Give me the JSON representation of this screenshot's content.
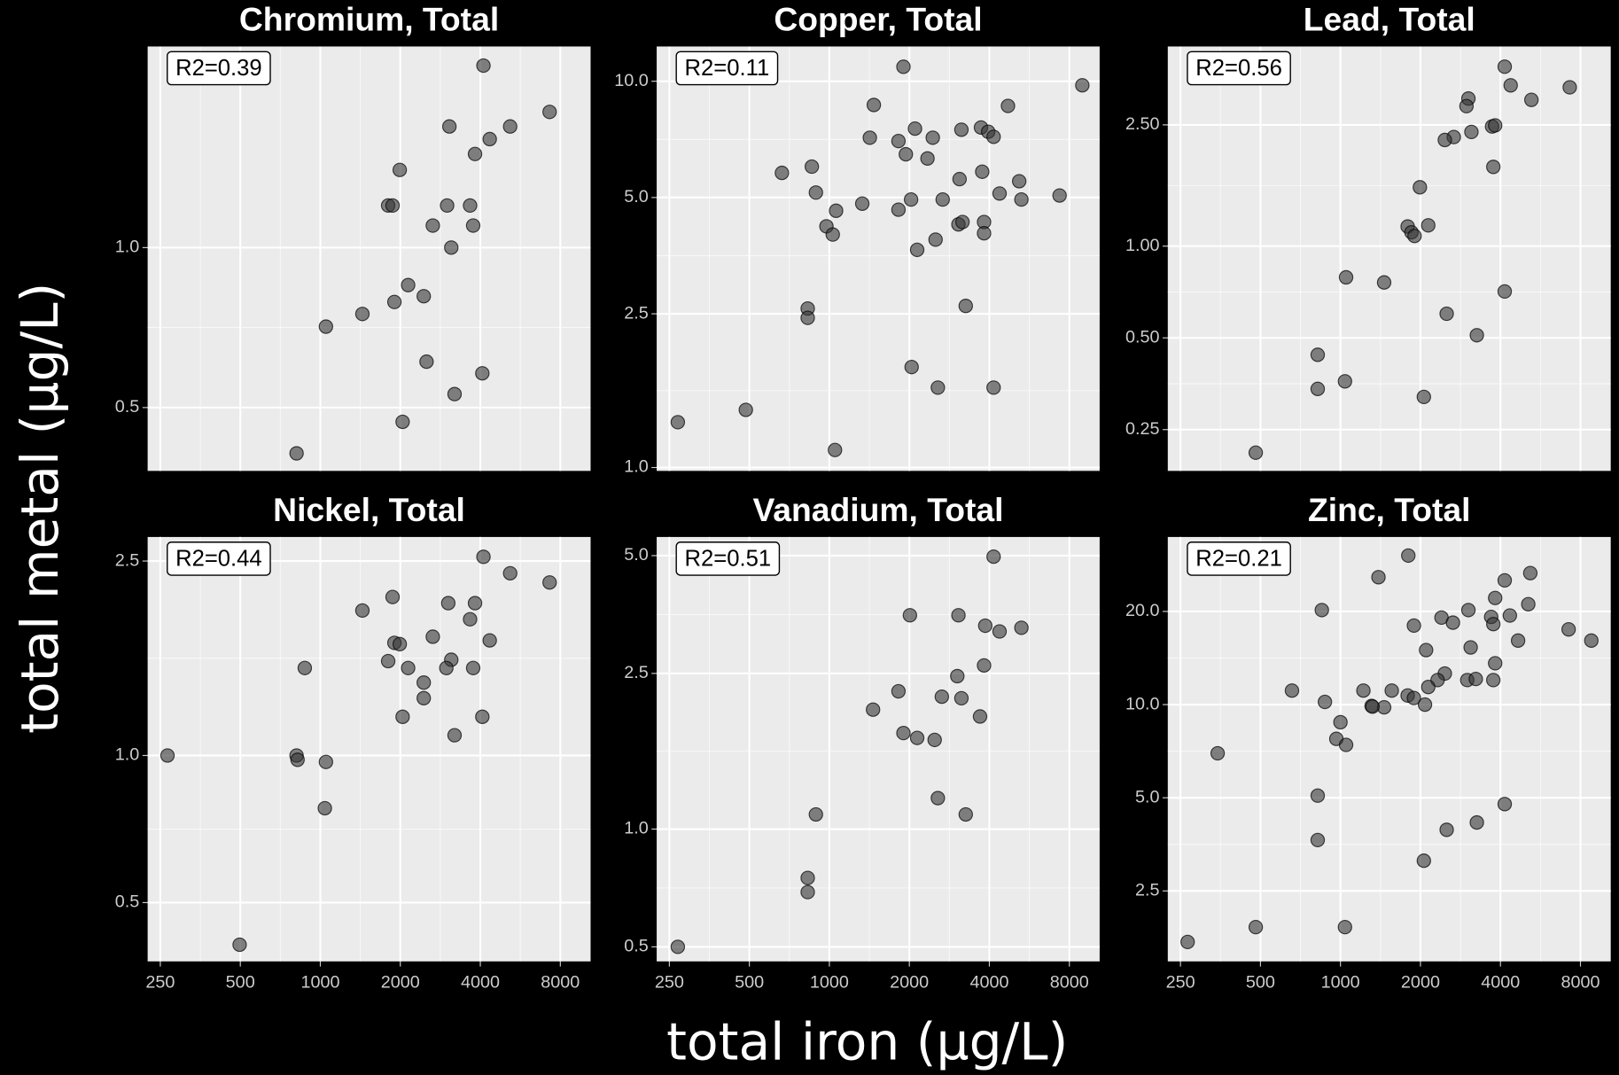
{
  "ylabel": "total metal (µg/L)",
  "xlabel": "total iron (µg/L)",
  "chart_data": [
    {
      "type": "scatter",
      "title": "Chromium, Total",
      "annotation": "R2=0.39",
      "color": "#333333",
      "log_x": true,
      "log_y": true,
      "grid": true,
      "xlim": [
        224,
        10400
      ],
      "xticks": [
        250,
        500,
        1000,
        2000,
        4000,
        8000
      ],
      "ylim": [
        0.38,
        2.39
      ],
      "yticks": [
        {
          "value": 0.5,
          "label": "0.5"
        },
        {
          "value": 1,
          "label": "1.0"
        }
      ],
      "x": [
        4110,
        7290,
        3060,
        5180,
        4340,
        3820,
        1990,
        1800,
        1870,
        3000,
        3660,
        2650,
        3760,
        3110,
        2140,
        2450,
        1900,
        1440,
        1050,
        2510,
        4070,
        3200,
        2040,
        814
      ],
      "values": [
        2.2,
        1.8,
        1.69,
        1.69,
        1.6,
        1.5,
        1.4,
        1.2,
        1.2,
        1.2,
        1.2,
        1.1,
        1.1,
        1.0,
        0.85,
        0.81,
        0.79,
        0.75,
        0.71,
        0.61,
        0.58,
        0.53,
        0.47,
        0.41
      ]
    },
    {
      "type": "scatter",
      "title": "Copper, Total",
      "annotation": "R2=0.11",
      "color": "#333333",
      "log_x": true,
      "log_y": true,
      "grid": true,
      "xlim": [
        224,
        10400
      ],
      "xticks": [
        250,
        500,
        1000,
        2000,
        4000,
        8000
      ],
      "ylim": [
        0.98,
        12.3
      ],
      "yticks": [
        {
          "value": 1,
          "label": "1.0"
        },
        2.5,
        {
          "value": 5,
          "label": "5.0"
        },
        {
          "value": 10,
          "label": "10.0"
        }
      ],
      "x": [
        269,
        485,
        663,
        859,
        890,
        1470,
        1900,
        8950,
        4700,
        1420,
        1820,
        2100,
        1940,
        2340,
        2450,
        3140,
        3720,
        3960,
        4150,
        3090,
        3760,
        5180,
        4370,
        7350,
        5280,
        2670,
        2030,
        1820,
        1330,
        1060,
        975,
        1030,
        3060,
        3170,
        3820,
        3820,
        2140,
        2510,
        3260,
        829,
        829,
        2040,
        2560,
        4150,
        1050
      ],
      "values": [
        1.31,
        1.41,
        5.79,
        6.01,
        5.15,
        8.68,
        10.9,
        9.76,
        8.63,
        7.14,
        7.0,
        7.54,
        6.47,
        6.31,
        7.14,
        7.49,
        7.59,
        7.4,
        7.18,
        5.58,
        5.83,
        5.51,
        5.12,
        5.06,
        4.94,
        4.94,
        4.94,
        4.65,
        4.82,
        4.62,
        4.21,
        4.01,
        4.26,
        4.32,
        4.32,
        4.04,
        3.66,
        3.89,
        2.62,
        2.58,
        2.44,
        1.82,
        1.61,
        1.61,
        1.11
      ]
    },
    {
      "type": "scatter",
      "title": "Lead, Total",
      "annotation": "R2=0.56",
      "color": "#333333",
      "log_x": true,
      "log_y": true,
      "grid": true,
      "xlim": [
        224,
        10400
      ],
      "xticks": [
        250,
        500,
        1000,
        2000,
        4000,
        8000
      ],
      "ylim": [
        0.183,
        4.52
      ],
      "yticks": [
        {
          "value": 0.25,
          "label": "0.25"
        },
        {
          "value": 0.5,
          "label": "0.50"
        },
        {
          "value": 1,
          "label": "1.00"
        },
        {
          "value": 2.5,
          "label": "2.50"
        }
      ],
      "x": [
        4150,
        4370,
        5230,
        7290,
        3030,
        2980,
        3720,
        3820,
        3110,
        2670,
        2470,
        3760,
        1990,
        1790,
        1850,
        1900,
        2140,
        1050,
        1460,
        4150,
        2510,
        3260,
        821,
        821,
        1040,
        2060,
        480
      ],
      "values": [
        3.88,
        3.37,
        3.02,
        3.32,
        3.05,
        2.88,
        2.47,
        2.49,
        2.37,
        2.28,
        2.23,
        1.82,
        1.56,
        1.16,
        1.11,
        1.08,
        1.17,
        0.79,
        0.76,
        0.71,
        0.6,
        0.51,
        0.44,
        0.34,
        0.36,
        0.32,
        0.21
      ]
    },
    {
      "type": "scatter",
      "title": "Nickel, Total",
      "annotation": "R2=0.44",
      "color": "#333333",
      "log_x": true,
      "log_y": true,
      "grid": true,
      "xlim": [
        224,
        10400
      ],
      "xticks": [
        250,
        500,
        1000,
        2000,
        4000,
        8000
      ],
      "ylim": [
        0.379,
        2.8
      ],
      "yticks": [
        0.5,
        {
          "value": 1,
          "label": "1.0"
        },
        2.5
      ],
      "x": [
        266,
        497,
        814,
        821,
        1050,
        1040,
        874,
        1440,
        1870,
        1800,
        1900,
        1990,
        2140,
        2650,
        2450,
        2450,
        2040,
        3030,
        3820,
        3660,
        4340,
        3110,
        2980,
        3760,
        4070,
        3200,
        4110,
        5180,
        7290
      ],
      "values": [
        1.0,
        0.41,
        1.0,
        0.98,
        0.97,
        0.78,
        1.51,
        1.98,
        2.11,
        1.56,
        1.7,
        1.69,
        1.51,
        1.75,
        1.41,
        1.31,
        1.2,
        2.05,
        2.05,
        1.9,
        1.72,
        1.57,
        1.51,
        1.51,
        1.2,
        1.1,
        2.55,
        2.36,
        2.26
      ]
    },
    {
      "type": "scatter",
      "title": "Vanadium, Total",
      "annotation": "R2=0.51",
      "color": "#333333",
      "log_x": true,
      "log_y": true,
      "grid": true,
      "xlim": [
        224,
        10400
      ],
      "xticks": [
        250,
        500,
        1000,
        2000,
        4000,
        8000
      ],
      "ylim": [
        0.459,
        5.58
      ],
      "yticks": [
        0.5,
        {
          "value": 1,
          "label": "1.0"
        },
        2.5,
        {
          "value": 5,
          "label": "5.0"
        }
      ],
      "x": [
        4150,
        2010,
        3060,
        3860,
        4370,
        5280,
        3820,
        3030,
        1820,
        2650,
        3140,
        1460,
        3690,
        1900,
        2140,
        2490,
        2560,
        3260,
        890,
        829,
        829,
        269
      ],
      "values": [
        4.97,
        3.52,
        3.52,
        3.31,
        3.2,
        3.27,
        2.62,
        2.46,
        2.25,
        2.18,
        2.16,
        2.02,
        1.94,
        1.76,
        1.71,
        1.69,
        1.2,
        1.09,
        1.09,
        0.75,
        0.69,
        0.5
      ]
    },
    {
      "type": "scatter",
      "title": "Zinc, Total",
      "annotation": "R2=0.21",
      "color": "#333333",
      "log_x": true,
      "log_y": true,
      "grid": true,
      "xlim": [
        224,
        10400
      ],
      "xticks": [
        250,
        500,
        1000,
        2000,
        4000,
        8000
      ],
      "ylim": [
        1.48,
        34.8
      ],
      "yticks": [
        2.5,
        {
          "value": 5,
          "label": "5.0"
        },
        {
          "value": 10,
          "label": "10.0"
        },
        {
          "value": 20,
          "label": "20.0"
        }
      ],
      "x": [
        1800,
        5180,
        4150,
        1390,
        3820,
        5090,
        851,
        3030,
        4340,
        2400,
        2650,
        3690,
        3760,
        1890,
        4660,
        7220,
        8790,
        2100,
        3090,
        3820,
        2470,
        2320,
        3000,
        3760,
        3230,
        2140,
        657,
        1220,
        1560,
        1790,
        1890,
        2080,
        874,
        1310,
        1460,
        1320,
        1000,
        965,
        1050,
        345,
        821,
        4150,
        2510,
        3260,
        821,
        2060,
        480,
        1040,
        266
      ],
      "values": [
        30.3,
        26.6,
        25.2,
        25.8,
        22.1,
        21.1,
        20.2,
        20.2,
        19.4,
        19.1,
        18.4,
        19.2,
        18.2,
        18.0,
        16.1,
        17.5,
        16.1,
        15.0,
        15.3,
        13.6,
        12.6,
        12.0,
        12.0,
        12.0,
        12.1,
        11.4,
        11.1,
        11.1,
        11.1,
        10.7,
        10.5,
        10.0,
        10.2,
        9.9,
        9.8,
        9.85,
        8.77,
        7.75,
        7.41,
        6.96,
        5.08,
        4.77,
        3.94,
        4.16,
        3.65,
        3.13,
        1.91,
        1.91,
        1.71
      ]
    }
  ]
}
